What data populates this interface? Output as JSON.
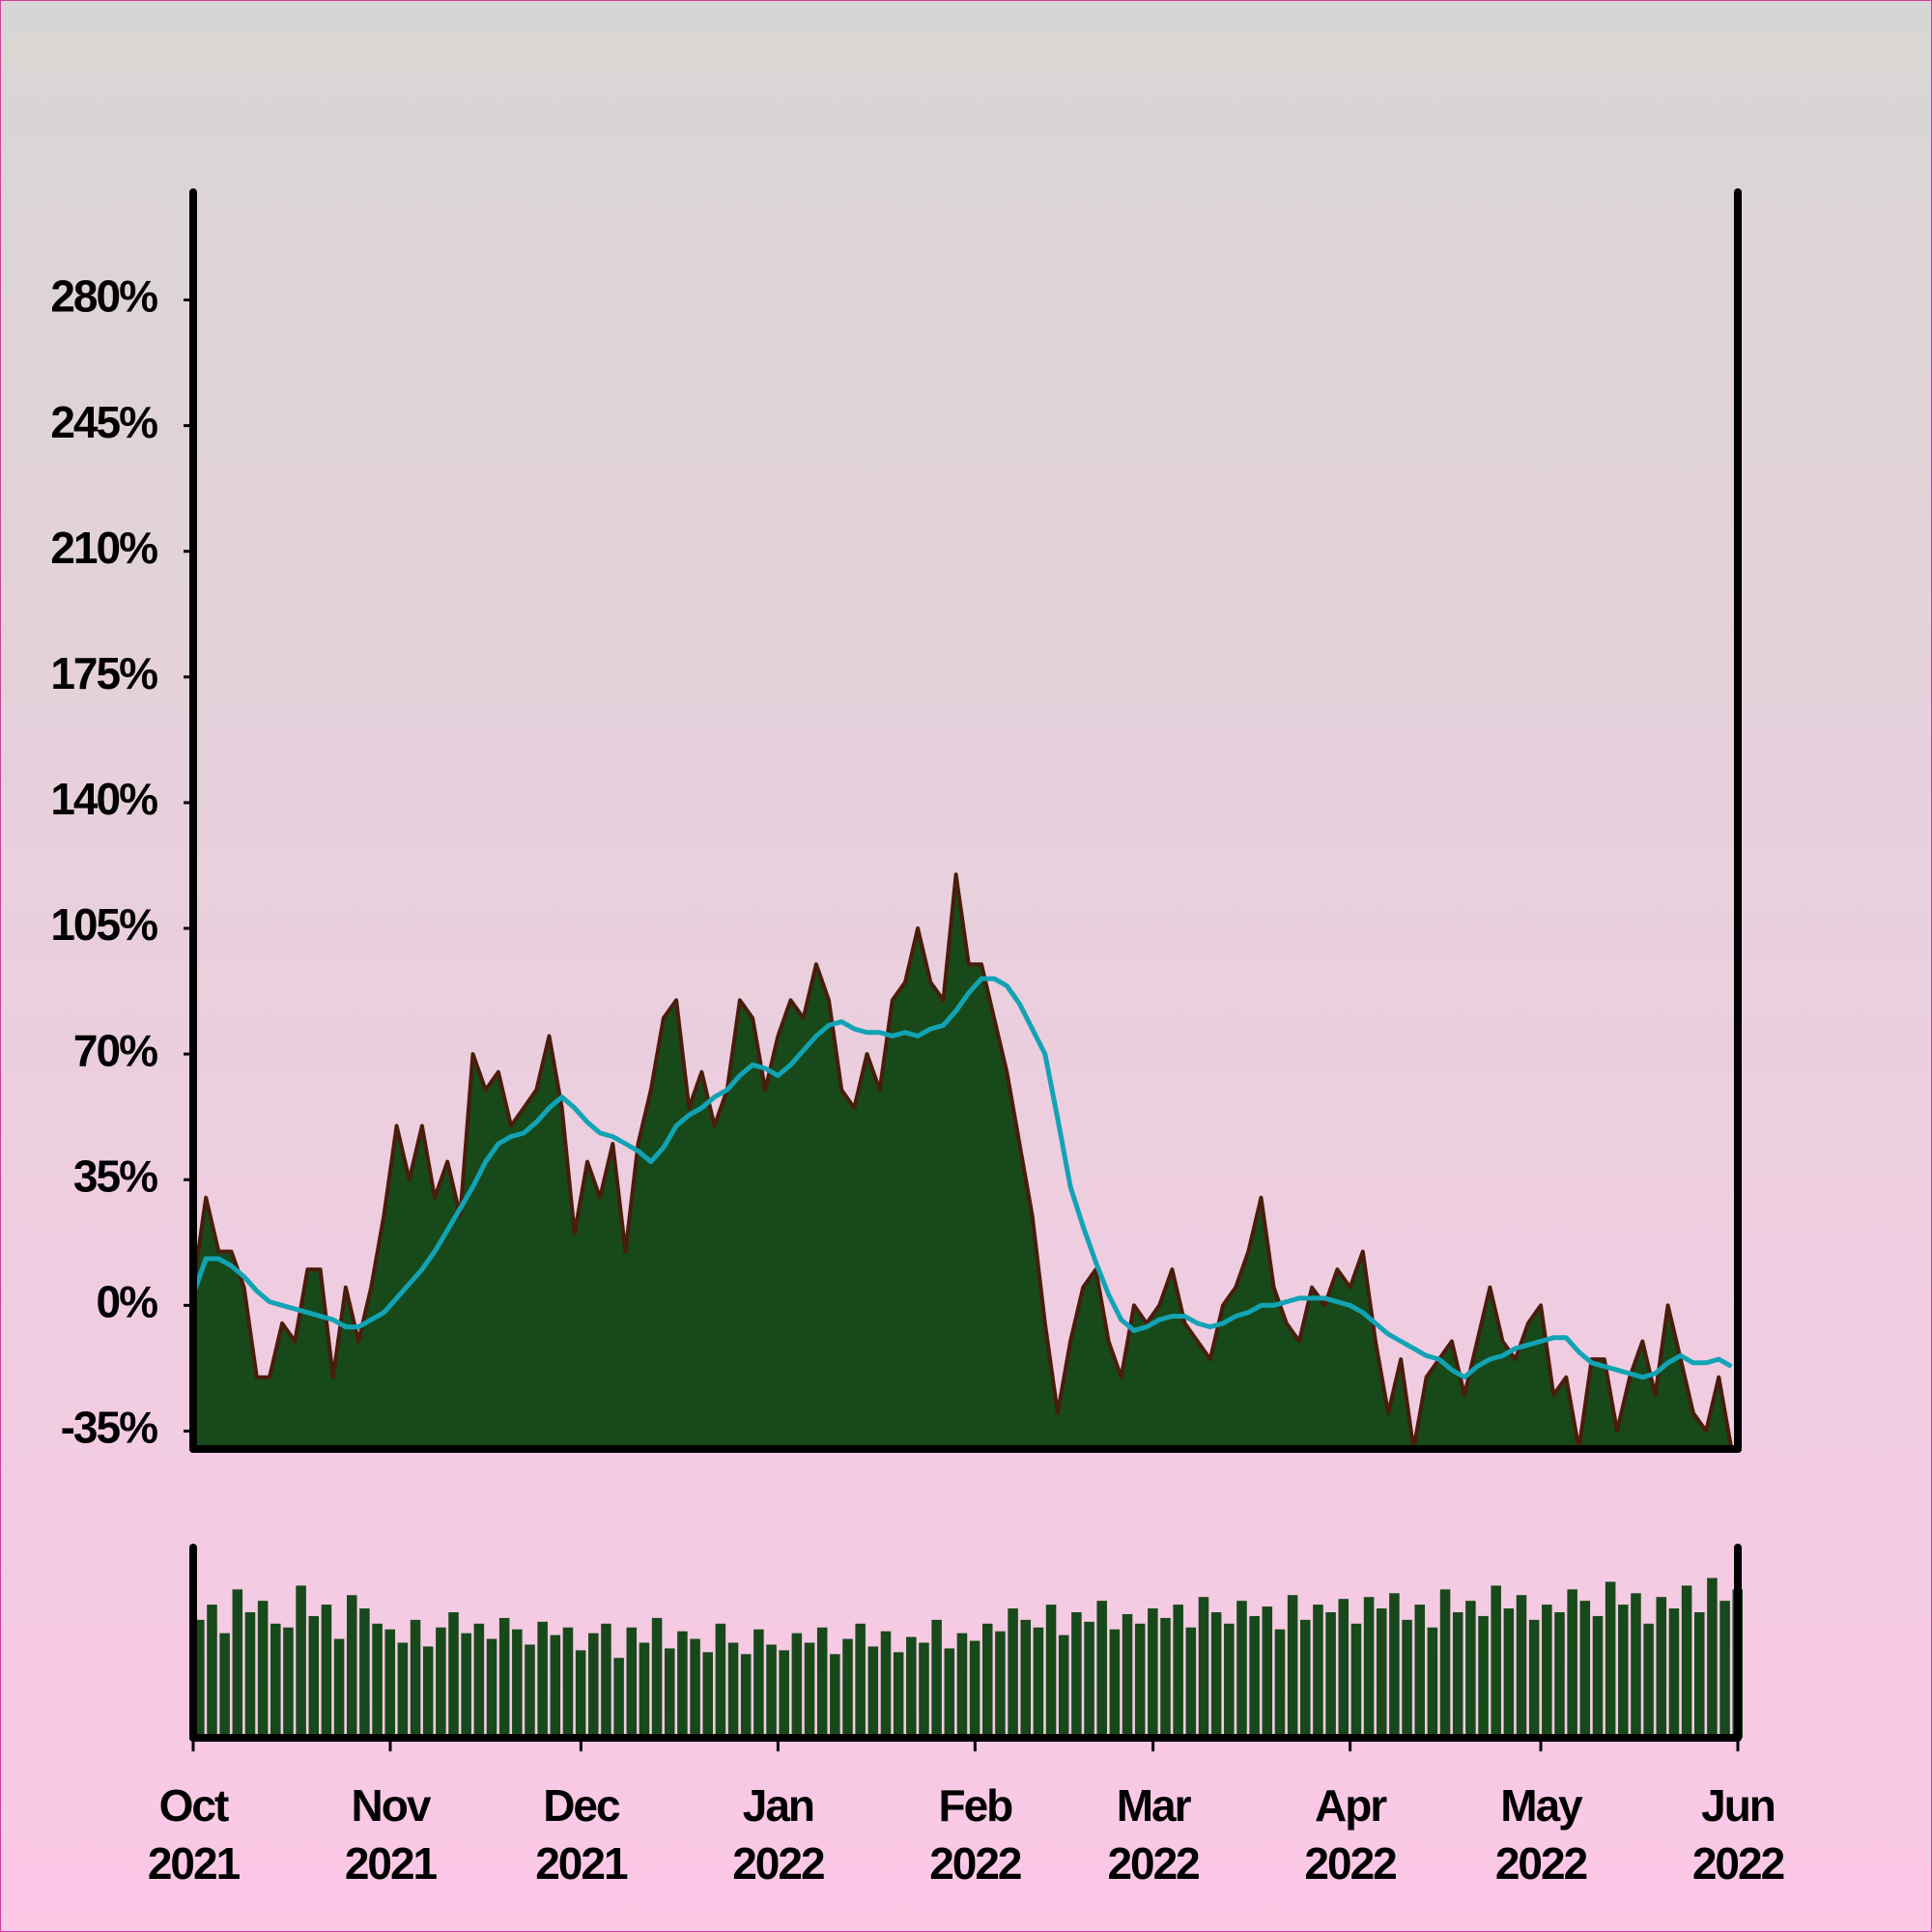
{
  "chart_data": [
    {
      "type": "area",
      "x": [
        0,
        2,
        4,
        6,
        8,
        10,
        12,
        14,
        16,
        18,
        20,
        22,
        24,
        26,
        28,
        30,
        32,
        34,
        36,
        38,
        40,
        42,
        44,
        46,
        48,
        50,
        52,
        54,
        56,
        58,
        60,
        62,
        64,
        66,
        68,
        70,
        72,
        74,
        76,
        78,
        80,
        82,
        84,
        86,
        88,
        90,
        92,
        94,
        96,
        98,
        100,
        102,
        104,
        106,
        108,
        110,
        112,
        114,
        116,
        118,
        120,
        122,
        124,
        126,
        128,
        130,
        132,
        134,
        136,
        138,
        140,
        142,
        144,
        146,
        148,
        150,
        152,
        154,
        156,
        158,
        160,
        162,
        164,
        166,
        168,
        170,
        172,
        174,
        176,
        178,
        180,
        182,
        184,
        186,
        188,
        190,
        192,
        194,
        196,
        198,
        200,
        202,
        204,
        206,
        208,
        210,
        212,
        214,
        216,
        218,
        220,
        222,
        224,
        226,
        228,
        230,
        232,
        234,
        236,
        238,
        240,
        242
      ],
      "series": [
        {
          "type": "area",
          "color": "#17491a",
          "edge_color": "#4a1c0c",
          "values": [
            5,
            30,
            15,
            15,
            5,
            -20,
            -20,
            -5,
            -10,
            10,
            10,
            -20,
            5,
            -10,
            5,
            25,
            50,
            35,
            50,
            30,
            40,
            25,
            70,
            60,
            65,
            50,
            55,
            60,
            75,
            55,
            20,
            40,
            30,
            45,
            15,
            45,
            60,
            80,
            85,
            55,
            65,
            50,
            60,
            85,
            80,
            60,
            75,
            85,
            80,
            95,
            85,
            60,
            55,
            70,
            60,
            85,
            90,
            105,
            90,
            85,
            120,
            95,
            95,
            80,
            65,
            45,
            25,
            -5,
            -30,
            -10,
            5,
            10,
            -10,
            -20,
            0,
            -5,
            0,
            10,
            -5,
            -10,
            -15,
            0,
            5,
            15,
            30,
            5,
            -5,
            -10,
            5,
            0,
            10,
            5,
            15,
            -10,
            -30,
            -15,
            -40,
            -20,
            -15,
            -10,
            -25,
            -10,
            5,
            -10,
            -15,
            -5,
            0,
            -25,
            -20,
            -40,
            -15,
            -15,
            -35,
            -20,
            -10,
            -25,
            0,
            -15,
            -30,
            -35,
            -20,
            -40
          ]
        },
        {
          "type": "line",
          "color": "#12a3b5",
          "values": [
            3,
            13,
            13,
            11,
            8,
            4,
            1,
            0,
            -1,
            -2,
            -3,
            -4,
            -6,
            -6,
            -4,
            -2,
            2,
            6,
            10,
            15,
            21,
            27,
            33,
            40,
            45,
            47,
            48,
            51,
            55,
            58,
            55,
            51,
            48,
            47,
            45,
            43,
            40,
            44,
            50,
            53,
            55,
            58,
            60,
            64,
            67,
            66,
            64,
            67,
            71,
            75,
            78,
            79,
            77,
            76,
            76,
            75,
            76,
            75,
            77,
            78,
            82,
            87,
            91,
            91,
            89,
            84,
            77,
            70,
            52,
            33,
            22,
            12,
            3,
            -4,
            -7,
            -6,
            -4,
            -3,
            -3,
            -5,
            -6,
            -5,
            -3,
            -2,
            0,
            0,
            1,
            2,
            2,
            2,
            1,
            0,
            -2,
            -5,
            -8,
            -10,
            -12,
            -14,
            -15,
            -18,
            -20,
            -17,
            -15,
            -14,
            -12,
            -11,
            -10,
            -9,
            -9,
            -13,
            -16,
            -17,
            -18,
            -19,
            -20,
            -19,
            -16,
            -14,
            -16,
            -16,
            -15,
            -17
          ]
        }
      ],
      "xlim": [
        0,
        243
      ],
      "ylim": [
        -40,
        310
      ],
      "yticks": [
        {
          "value": -35,
          "label": "-35%"
        },
        {
          "value": 0,
          "label": "0%"
        },
        {
          "value": 35,
          "label": "35%"
        },
        {
          "value": 70,
          "label": "70%"
        },
        {
          "value": 105,
          "label": "105%"
        },
        {
          "value": 140,
          "label": "140%"
        },
        {
          "value": 175,
          "label": "175%"
        },
        {
          "value": 210,
          "label": "210%"
        },
        {
          "value": 245,
          "label": "245%"
        },
        {
          "value": 280,
          "label": "280%"
        }
      ]
    },
    {
      "type": "bar",
      "color": "#17491a",
      "x": [
        0,
        2,
        4,
        6,
        8,
        10,
        12,
        14,
        16,
        18,
        20,
        22,
        24,
        26,
        28,
        30,
        32,
        34,
        36,
        38,
        40,
        42,
        44,
        46,
        48,
        50,
        52,
        54,
        56,
        58,
        60,
        62,
        64,
        66,
        68,
        70,
        72,
        74,
        76,
        78,
        80,
        82,
        84,
        86,
        88,
        90,
        92,
        94,
        96,
        98,
        100,
        102,
        104,
        106,
        108,
        110,
        112,
        114,
        116,
        118,
        120,
        122,
        124,
        126,
        128,
        130,
        132,
        134,
        136,
        138,
        140,
        142,
        144,
        146,
        148,
        150,
        152,
        154,
        156,
        158,
        160,
        162,
        164,
        166,
        168,
        170,
        172,
        174,
        176,
        178,
        180,
        182,
        184,
        186,
        188,
        190,
        192,
        194,
        196,
        198,
        200,
        202,
        204,
        206,
        208,
        210,
        212,
        214,
        216,
        218,
        220,
        222,
        224,
        226,
        228,
        230,
        232,
        234,
        236,
        238,
        240,
        242
      ],
      "values": [
        62,
        70,
        55,
        78,
        66,
        72,
        60,
        58,
        80,
        64,
        70,
        52,
        75,
        68,
        60,
        57,
        50,
        62,
        48,
        58,
        66,
        55,
        60,
        52,
        63,
        57,
        49,
        61,
        54,
        58,
        46,
        55,
        60,
        42,
        58,
        50,
        63,
        47,
        56,
        52,
        45,
        60,
        50,
        44,
        57,
        49,
        46,
        55,
        50,
        58,
        44,
        52,
        60,
        48,
        56,
        45,
        53,
        50,
        62,
        47,
        55,
        51,
        60,
        56,
        68,
        62,
        58,
        70,
        54,
        66,
        61,
        72,
        57,
        65,
        60,
        68,
        63,
        70,
        58,
        74,
        66,
        60,
        72,
        64,
        69,
        57,
        75,
        62,
        70,
        66,
        73,
        60,
        74,
        68,
        76,
        62,
        70,
        58,
        78,
        66,
        72,
        64,
        80,
        68,
        75,
        62,
        70,
        66,
        78,
        72,
        64,
        82,
        70,
        76,
        60,
        74,
        68,
        80,
        66,
        84,
        72,
        78
      ],
      "xlim": [
        0,
        243
      ],
      "ylim": [
        0,
        100
      ],
      "xticks": [
        {
          "value": 0,
          "label": "Oct\n2021"
        },
        {
          "value": 31,
          "label": "Nov\n2021"
        },
        {
          "value": 61,
          "label": "Dec\n2021"
        },
        {
          "value": 92,
          "label": "Jan\n2022"
        },
        {
          "value": 123,
          "label": "Feb\n2022"
        },
        {
          "value": 151,
          "label": "Mar\n2022"
        },
        {
          "value": 182,
          "label": "Apr\n2022"
        },
        {
          "value": 212,
          "label": "May\n2022"
        },
        {
          "value": 243,
          "label": "Jun\n2022"
        }
      ]
    }
  ]
}
